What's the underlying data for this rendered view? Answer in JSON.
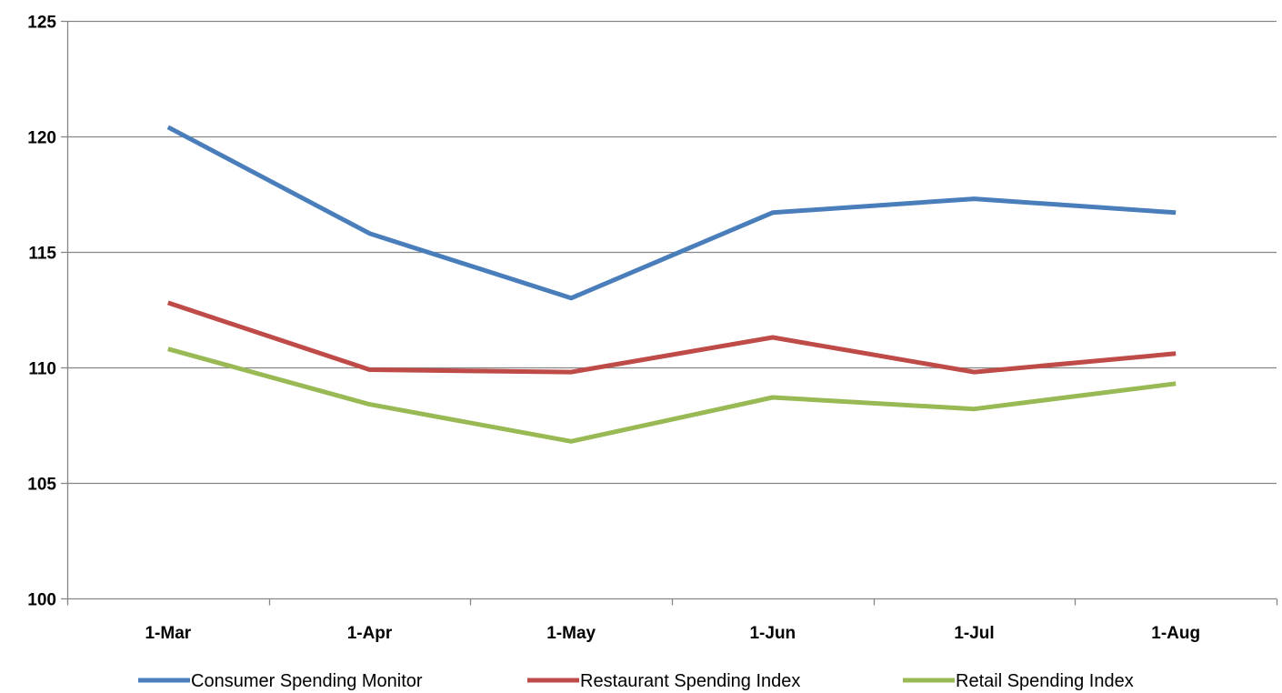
{
  "chart_data": {
    "type": "line",
    "title": "",
    "xlabel": "",
    "ylabel": "",
    "categories": [
      "1-Mar",
      "1-Apr",
      "1-May",
      "1-Jun",
      "1-Jul",
      "1-Aug"
    ],
    "ylim": [
      100,
      125
    ],
    "yticks": [
      100,
      105,
      110,
      115,
      120,
      125
    ],
    "grid": true,
    "legend_position": "bottom",
    "series": [
      {
        "name": "Consumer Spending Monitor",
        "color": "#4a7ebb",
        "values": [
          120.4,
          115.8,
          113.0,
          116.7,
          117.3,
          116.7
        ]
      },
      {
        "name": "Restaurant Spending Index",
        "color": "#be4b48",
        "values": [
          112.8,
          109.9,
          109.8,
          111.3,
          109.8,
          110.6
        ]
      },
      {
        "name": "Retail Spending Index",
        "color": "#98b954",
        "values": [
          110.8,
          108.4,
          106.8,
          108.7,
          108.2,
          109.3
        ]
      }
    ]
  }
}
